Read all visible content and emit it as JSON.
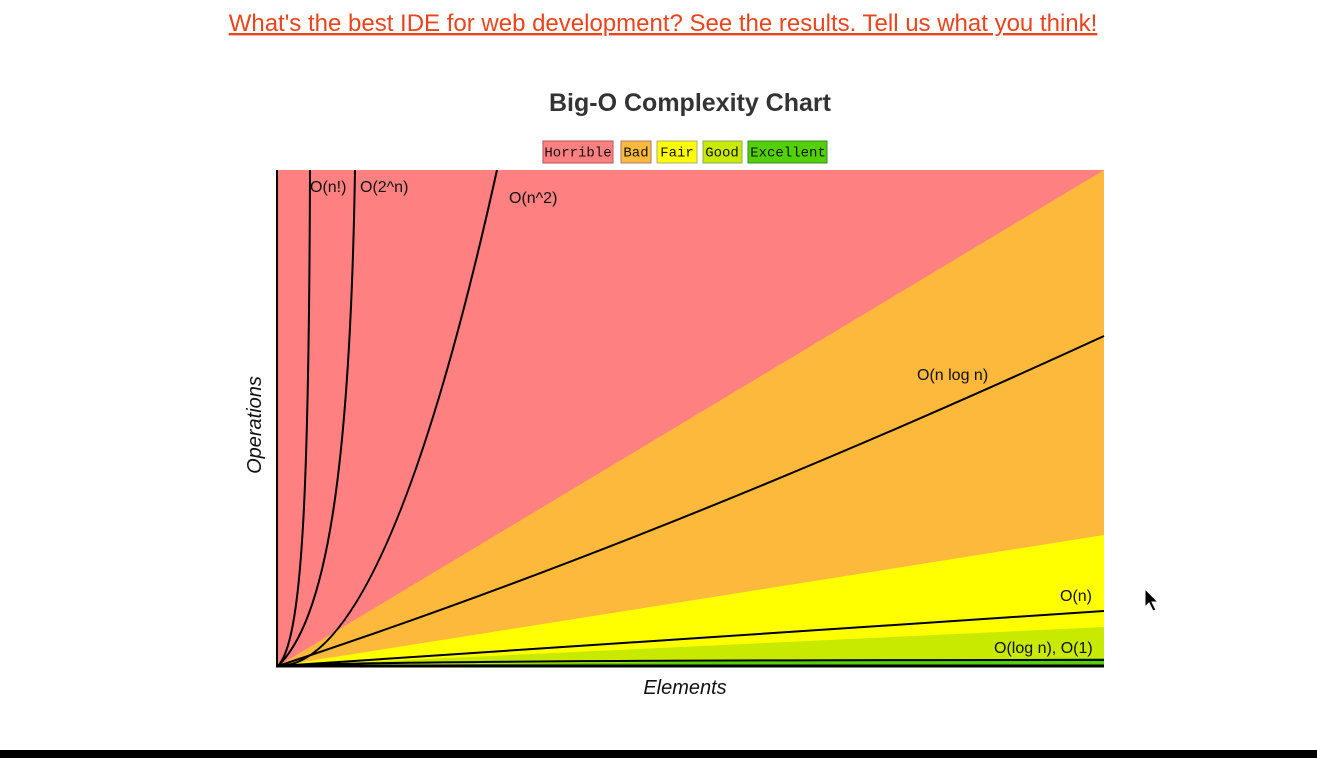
{
  "link": {
    "text": "What's the best IDE for web development? See the results. Tell us what you think!"
  },
  "chart": {
    "title": "Big-O Complexity Chart",
    "legend": [
      "Horrible",
      "Bad",
      "Fair",
      "Good",
      "Excellent"
    ],
    "axis_labels": {
      "x": "Elements",
      "y": "Operations"
    },
    "curve_labels": [
      "O(n!)",
      "O(2^n)",
      "O(n^2)",
      "O(n log n)",
      "O(n)",
      "O(log n), O(1)"
    ]
  }
}
